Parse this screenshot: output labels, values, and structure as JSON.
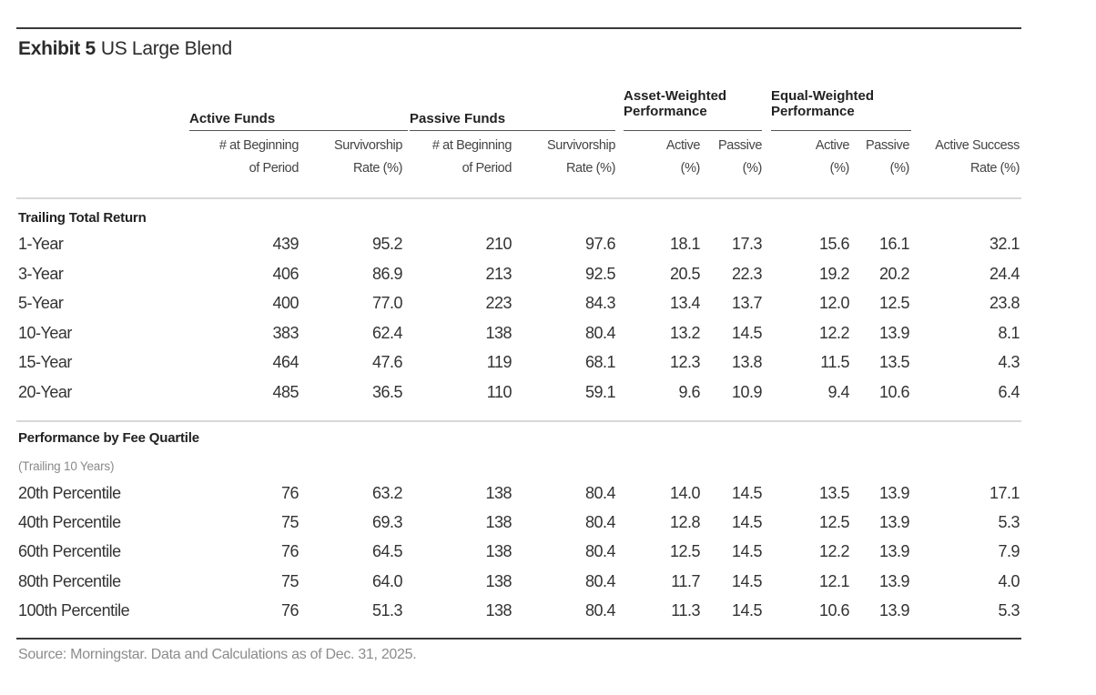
{
  "exhibit": {
    "label": "Exhibit 5",
    "title": "US Large Blend"
  },
  "groups": {
    "active_funds": "Active Funds",
    "passive_funds": "Passive Funds",
    "asset_weighted_1": "Asset-Weighted",
    "asset_weighted_2": "Performance",
    "equal_weighted_1": "Equal-Weighted",
    "equal_weighted_2": "Performance"
  },
  "columns": [
    [
      "# at Beginning",
      "of Period"
    ],
    [
      "Survivorship",
      "Rate (%)"
    ],
    [
      "# at Beginning",
      "of Period"
    ],
    [
      "Survivorship",
      "Rate (%)"
    ],
    [
      "Active",
      "(%)"
    ],
    [
      "Passive",
      "(%)"
    ],
    [
      "Active",
      "(%)"
    ],
    [
      "Passive",
      "(%)"
    ],
    [
      "Active Success",
      "Rate (%)"
    ]
  ],
  "sections": [
    {
      "title": "Trailing Total Return",
      "note": "",
      "rows": [
        {
          "label": "1-Year",
          "values": [
            "439",
            "95.2",
            "210",
            "97.6",
            "18.1",
            "17.3",
            "15.6",
            "16.1",
            "32.1"
          ]
        },
        {
          "label": "3-Year",
          "values": [
            "406",
            "86.9",
            "213",
            "92.5",
            "20.5",
            "22.3",
            "19.2",
            "20.2",
            "24.4"
          ]
        },
        {
          "label": "5-Year",
          "values": [
            "400",
            "77.0",
            "223",
            "84.3",
            "13.4",
            "13.7",
            "12.0",
            "12.5",
            "23.8"
          ]
        },
        {
          "label": "10-Year",
          "values": [
            "383",
            "62.4",
            "138",
            "80.4",
            "13.2",
            "14.5",
            "12.2",
            "13.9",
            "8.1"
          ]
        },
        {
          "label": "15-Year",
          "values": [
            "464",
            "47.6",
            "119",
            "68.1",
            "12.3",
            "13.8",
            "11.5",
            "13.5",
            "4.3"
          ]
        },
        {
          "label": "20-Year",
          "values": [
            "485",
            "36.5",
            "110",
            "59.1",
            "9.6",
            "10.9",
            "9.4",
            "10.6",
            "6.4"
          ]
        }
      ]
    },
    {
      "title": "Performance by Fee Quartile",
      "note": "(Trailing 10 Years)",
      "rows": [
        {
          "label": "20th Percentile",
          "values": [
            "76",
            "63.2",
            "138",
            "80.4",
            "14.0",
            "14.5",
            "13.5",
            "13.9",
            "17.1"
          ]
        },
        {
          "label": "40th Percentile",
          "values": [
            "75",
            "69.3",
            "138",
            "80.4",
            "12.8",
            "14.5",
            "12.5",
            "13.9",
            "5.3"
          ]
        },
        {
          "label": "60th Percentile",
          "values": [
            "76",
            "64.5",
            "138",
            "80.4",
            "12.5",
            "14.5",
            "12.2",
            "13.9",
            "7.9"
          ]
        },
        {
          "label": "80th Percentile",
          "values": [
            "75",
            "64.0",
            "138",
            "80.4",
            "11.7",
            "14.5",
            "12.1",
            "13.9",
            "4.0"
          ]
        },
        {
          "label": "100th Percentile",
          "values": [
            "76",
            "51.3",
            "138",
            "80.4",
            "11.3",
            "14.5",
            "10.6",
            "13.9",
            "5.3"
          ]
        }
      ]
    }
  ],
  "source": "Source: Morningstar. Data and Calculations as of Dec. 31, 2025."
}
